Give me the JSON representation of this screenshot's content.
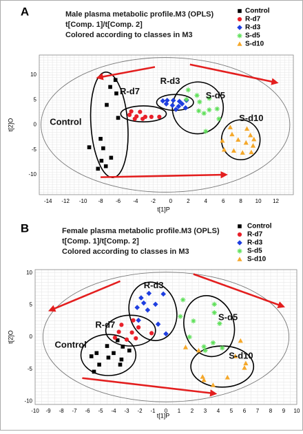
{
  "panels": [
    {
      "letter": "A",
      "title_lines": [
        "Male plasma metabolic profile.M3 (OPLS)",
        "t[Comp. 1]/t[Comp. 2]",
        "Colored according to classes in M3"
      ],
      "chart_data": {
        "type": "scatter",
        "xlabel": "t[1]P",
        "ylabel": "t[2]O",
        "xlim": [
          -15,
          14
        ],
        "ylim": [
          -14,
          14
        ],
        "xticks": [
          -14,
          -12,
          -10,
          -8,
          -6,
          -4,
          -2,
          0,
          2,
          4,
          6,
          8,
          10,
          12
        ],
        "yticks": [
          -10,
          -5,
          0,
          5,
          10
        ],
        "grid": true,
        "legend_position": "top-right",
        "group_labels": [
          {
            "text": "Control",
            "x": -13.8,
            "y": 0.5
          },
          {
            "text": "R-d7",
            "x": -5.8,
            "y": 6.6
          },
          {
            "text": "R-d3",
            "x": -1.2,
            "y": 8.7
          },
          {
            "text": "S-d5",
            "x": 4.0,
            "y": 5.8
          },
          {
            "text": "S-d10",
            "x": 7.8,
            "y": 1.2
          }
        ],
        "series": [
          {
            "name": "Control",
            "marker": "square",
            "color": "#000000",
            "points": [
              [
                -6.3,
                9.0
              ],
              [
                -6.9,
                7.6
              ],
              [
                -6.2,
                6.3
              ],
              [
                -7.3,
                4.0
              ],
              [
                -6.0,
                1.4
              ],
              [
                -8.0,
                -2.8
              ],
              [
                -9.3,
                -4.5
              ],
              [
                -7.7,
                -4.7
              ],
              [
                -6.8,
                -6.6
              ],
              [
                -7.9,
                -7.2
              ],
              [
                -7.4,
                -8.3
              ],
              [
                -8.3,
                -8.8
              ]
            ]
          },
          {
            "name": "R-d7",
            "marker": "circle",
            "color": "#e8202a",
            "points": [
              [
                -4.5,
                2.7
              ],
              [
                -3.5,
                2.6
              ],
              [
                -4.7,
                2.0
              ],
              [
                -3.9,
                1.7
              ],
              [
                -2.9,
                1.6
              ],
              [
                -2.2,
                1.6
              ],
              [
                -1.3,
                1.6
              ],
              [
                -4.1,
                1.2
              ],
              [
                -3.2,
                1.2
              ]
            ]
          },
          {
            "name": "R-d3",
            "marker": "diamond",
            "color": "#1e3ee0",
            "points": [
              [
                -0.9,
                4.8
              ],
              [
                -0.4,
                4.9
              ],
              [
                0.3,
                4.9
              ],
              [
                1.0,
                4.7
              ],
              [
                1.8,
                4.9
              ],
              [
                -0.5,
                4.2
              ],
              [
                1.3,
                4.2
              ],
              [
                0.2,
                3.9
              ],
              [
                0.9,
                3.7
              ],
              [
                1.7,
                3.4
              ],
              [
                0.6,
                3.1
              ]
            ]
          },
          {
            "name": "S-d5",
            "marker": "star",
            "color": "#5fe05a",
            "points": [
              [
                2.0,
                7.0
              ],
              [
                3.0,
                5.9
              ],
              [
                4.4,
                5.3
              ],
              [
                1.8,
                5.1
              ],
              [
                3.3,
                4.6
              ],
              [
                4.4,
                3.0
              ],
              [
                5.3,
                3.2
              ],
              [
                3.2,
                2.8
              ],
              [
                3.8,
                2.3
              ],
              [
                5.5,
                1.2
              ],
              [
                4.0,
                -1.3
              ]
            ]
          },
          {
            "name": "S-d10",
            "marker": "triangle",
            "color": "#f5a82a",
            "points": [
              [
                6.8,
                -0.5
              ],
              [
                8.7,
                -0.8
              ],
              [
                7.0,
                -1.9
              ],
              [
                9.1,
                -2.1
              ],
              [
                9.5,
                -2.9
              ],
              [
                5.9,
                -3.2
              ],
              [
                7.7,
                -3.0
              ],
              [
                8.6,
                -3.6
              ],
              [
                9.4,
                -4.2
              ],
              [
                6.1,
                -5.0
              ],
              [
                7.2,
                -5.2
              ],
              [
                9.2,
                -5.5
              ],
              [
                8.2,
                -5.6
              ]
            ]
          }
        ]
      }
    },
    {
      "letter": "B",
      "title_lines": [
        "Female plasma metabolic profile.M3 (OPLS)",
        "t[Comp. 1]/t[Comp. 2]",
        "Colored according to classes in M3"
      ],
      "chart_data": {
        "type": "scatter",
        "xlabel": "t[1]P",
        "ylabel": "t[2]O",
        "xlim": [
          -10,
          10
        ],
        "ylim": [
          -10.5,
          10.5
        ],
        "xticks": [
          -10,
          -9,
          -8,
          -7,
          -6,
          -5,
          -4,
          -3,
          -2,
          -1,
          0,
          1,
          2,
          3,
          4,
          5,
          6,
          7,
          8,
          9,
          10
        ],
        "yticks": [
          -10,
          -5,
          0,
          5,
          10
        ],
        "grid": true,
        "legend_position": "top-right",
        "group_labels": [
          {
            "text": "Control",
            "x": -8.5,
            "y": -1.3
          },
          {
            "text": "R-d7",
            "x": -5.4,
            "y": 1.8
          },
          {
            "text": "R-d3",
            "x": -1.7,
            "y": 8.0
          },
          {
            "text": "S-d5",
            "x": 4.0,
            "y": 3.0
          },
          {
            "text": "S-d10",
            "x": 4.8,
            "y": -3.0
          }
        ],
        "series": [
          {
            "name": "Control",
            "marker": "square",
            "color": "#000000",
            "points": [
              [
                -3.7,
                -0.5
              ],
              [
                -4.5,
                -1.4
              ],
              [
                -3.3,
                -1.5
              ],
              [
                -5.3,
                -2.5
              ],
              [
                -4.0,
                -2.5
              ],
              [
                -2.8,
                -2.1
              ],
              [
                -5.7,
                -3.0
              ],
              [
                -4.4,
                -3.2
              ],
              [
                -3.4,
                -3.5
              ],
              [
                -5.1,
                -4.3
              ],
              [
                -3.5,
                -4.3
              ],
              [
                -5.5,
                -5.4
              ]
            ]
          },
          {
            "name": "R-d7",
            "marker": "circle",
            "color": "#e8202a",
            "points": [
              [
                -2.5,
                2.6
              ],
              [
                -3.4,
                1.9
              ],
              [
                -2.1,
                1.5
              ],
              [
                -3.6,
                0.8
              ],
              [
                -2.6,
                0.7
              ],
              [
                -1.1,
                0.6
              ],
              [
                -3.9,
                -0.1
              ],
              [
                -2.3,
                -0.2
              ],
              [
                -3.0,
                -0.4
              ]
            ]
          },
          {
            "name": "R-d3",
            "marker": "diamond",
            "color": "#1e3ee0",
            "points": [
              [
                -1.3,
                6.8
              ],
              [
                -0.2,
                6.7
              ],
              [
                -1.9,
                6.1
              ],
              [
                -1.7,
                5.3
              ],
              [
                -0.8,
                5.1
              ],
              [
                -2.2,
                4.6
              ],
              [
                -1.4,
                4.2
              ],
              [
                -2.1,
                2.6
              ],
              [
                -0.6,
                2.0
              ],
              [
                0.0,
                0.5
              ]
            ]
          },
          {
            "name": "S-d5",
            "marker": "star",
            "color": "#5fe05a",
            "points": [
              [
                1.3,
                5.8
              ],
              [
                3.7,
                5.1
              ],
              [
                3.7,
                3.8
              ],
              [
                1.1,
                3.2
              ],
              [
                2.1,
                2.5
              ],
              [
                4.1,
                2.1
              ],
              [
                1.8,
                0.0
              ],
              [
                3.6,
                -0.9
              ],
              [
                2.9,
                -1.5
              ],
              [
                4.3,
                -1.7
              ],
              [
                3.0,
                -2.1
              ]
            ]
          },
          {
            "name": "S-d10",
            "marker": "triangle",
            "color": "#f5a82a",
            "points": [
              [
                5.7,
                -0.6
              ],
              [
                1.5,
                -1.6
              ],
              [
                2.5,
                -2.1
              ],
              [
                5.3,
                -3.0
              ],
              [
                6.1,
                -4.1
              ],
              [
                6.0,
                -4.8
              ],
              [
                2.8,
                -6.2
              ],
              [
                2.9,
                -6.7
              ],
              [
                4.7,
                -6.3
              ],
              [
                3.6,
                -7.5
              ]
            ]
          }
        ]
      }
    }
  ]
}
